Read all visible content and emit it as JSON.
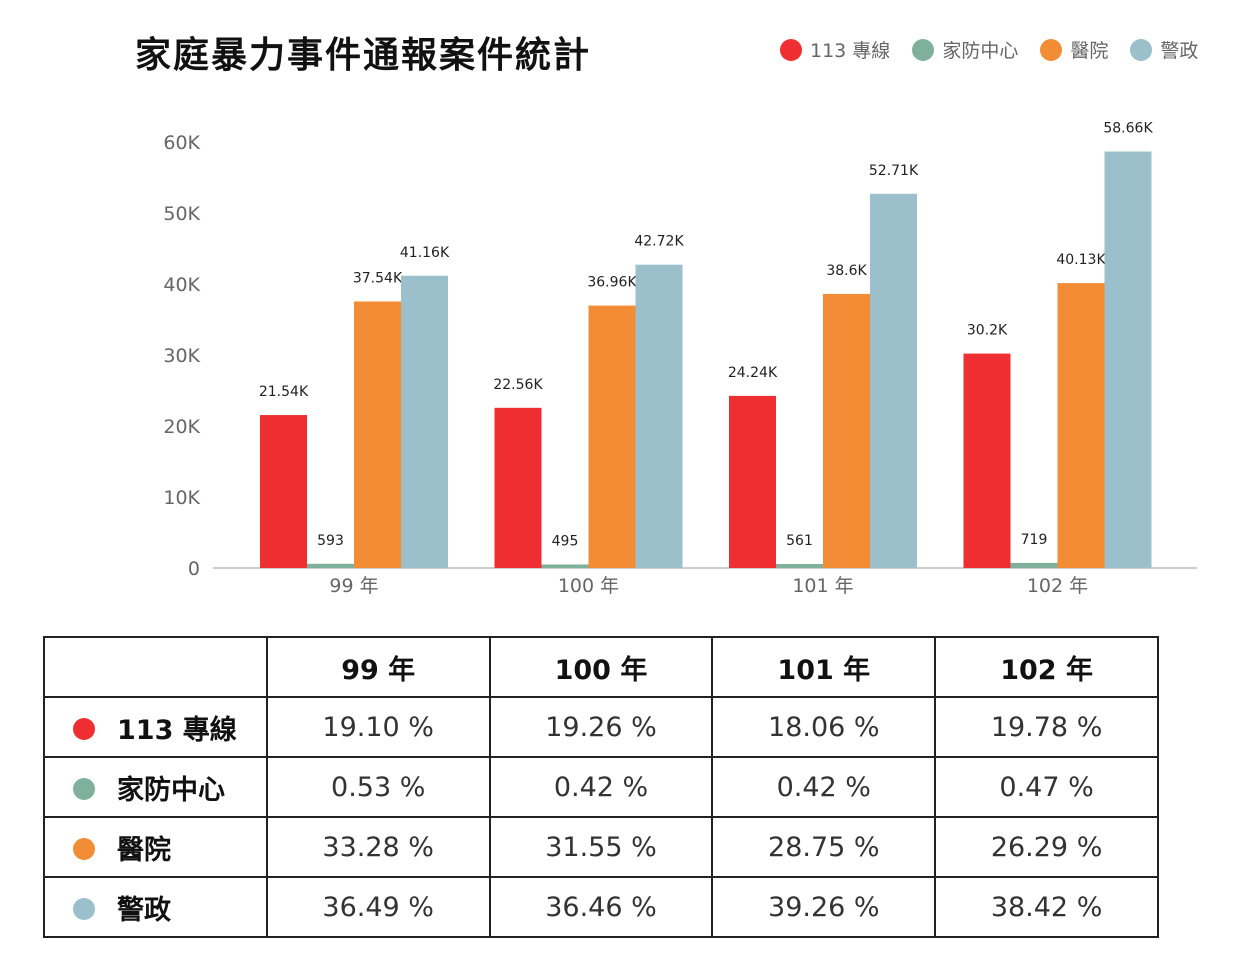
{
  "colors": {
    "s0": "#ee2e31",
    "s1": "#7fb09b",
    "s2": "#f28c35",
    "s3": "#9bbfcb"
  },
  "chart_data": {
    "type": "bar",
    "title": "家庭暴力事件通報案件統計",
    "categories": [
      "99 年",
      "100 年",
      "101 年",
      "102 年"
    ],
    "series": [
      {
        "name": "113 專線",
        "values": [
          21540,
          22560,
          24240,
          30200
        ],
        "labels": [
          "21.54K",
          "22.56K",
          "24.24K",
          "30.2K"
        ]
      },
      {
        "name": "家防中心",
        "values": [
          593,
          495,
          561,
          719
        ],
        "labels": [
          "593",
          "495",
          "561",
          "719"
        ]
      },
      {
        "name": "醫院",
        "values": [
          37540,
          36960,
          38600,
          40130
        ],
        "labels": [
          "37.54K",
          "36.96K",
          "38.6K",
          "40.13K"
        ]
      },
      {
        "name": "警政",
        "values": [
          41160,
          42720,
          52710,
          58660
        ],
        "labels": [
          "41.16K",
          "42.72K",
          "52.71K",
          "58.66K"
        ]
      }
    ],
    "ylim": [
      0,
      60000
    ],
    "yticks": [
      {
        "value": 0,
        "label": "0"
      },
      {
        "value": 10000,
        "label": "10K"
      },
      {
        "value": 20000,
        "label": "20K"
      },
      {
        "value": 30000,
        "label": "30K"
      },
      {
        "value": 40000,
        "label": "40K"
      },
      {
        "value": 50000,
        "label": "50K"
      },
      {
        "value": 60000,
        "label": "60K"
      }
    ],
    "legend_position": "top-right",
    "grid": false
  },
  "table": {
    "headers": [
      "",
      "99 年",
      "100 年",
      "101 年",
      "102 年"
    ],
    "rows": [
      {
        "label": "113 專線",
        "values": [
          "19.10 %",
          "19.26 %",
          "18.06 %",
          "19.78 %"
        ]
      },
      {
        "label": "家防中心",
        "values": [
          "0.53 %",
          "0.42 %",
          "0.42 %",
          "0.47 %"
        ]
      },
      {
        "label": "醫院",
        "values": [
          "33.28 %",
          "31.55 %",
          "28.75 %",
          "26.29 %"
        ]
      },
      {
        "label": "警政",
        "values": [
          "36.49 %",
          "36.46 %",
          "39.26 %",
          "38.42 %"
        ]
      }
    ]
  }
}
